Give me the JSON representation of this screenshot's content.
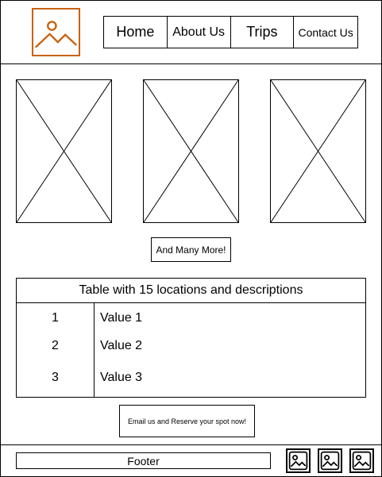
{
  "header": {
    "logo_icon": "image-placeholder-icon",
    "accent_color": "#c8620f",
    "nav": {
      "home": "Home",
      "about": "About Us",
      "trips": "Trips",
      "contact": "Contact Us"
    }
  },
  "gallery": {
    "placeholder_icon": "image-placeholder-cross",
    "count": 3,
    "more_button": "And Many More!"
  },
  "locations_table": {
    "title": "Table with 15 locations and descriptions",
    "rows": [
      {
        "index": "1",
        "value": "Value 1"
      },
      {
        "index": "2",
        "value": "Value 2"
      },
      {
        "index": "3",
        "value": "Value 3"
      }
    ]
  },
  "cta": {
    "email_button": "Email us and Reserve your spot now!"
  },
  "footer": {
    "label": "Footer",
    "social_icons": [
      "image-icon",
      "image-icon",
      "image-icon"
    ]
  }
}
